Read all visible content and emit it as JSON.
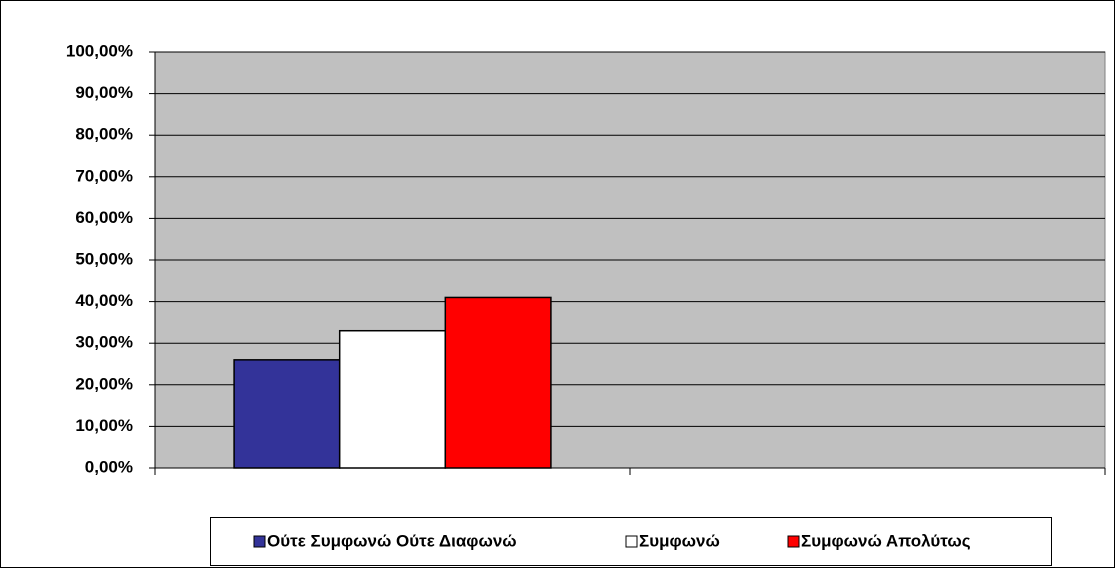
{
  "chart_data": {
    "type": "bar",
    "categories": [
      null,
      null
    ],
    "series": [
      {
        "name": "Ούτε Συμφωνώ Ούτε Διαφωνώ",
        "color": "#333399",
        "values": [
          26,
          null
        ]
      },
      {
        "name": "Συμφωνώ",
        "color": "#ffffff",
        "values": [
          33,
          null
        ]
      },
      {
        "name": "Συμφωνώ Απολύτως",
        "color": "#ff0000",
        "values": [
          41,
          null
        ]
      }
    ],
    "ylim": [
      0,
      100
    ],
    "yticks": [
      {
        "value": 0,
        "label": "0,00%"
      },
      {
        "value": 10,
        "label": "10,00%"
      },
      {
        "value": 20,
        "label": "20,00%"
      },
      {
        "value": 30,
        "label": "30,00%"
      },
      {
        "value": 40,
        "label": "40,00%"
      },
      {
        "value": 50,
        "label": "50,00%"
      },
      {
        "value": 60,
        "label": "60,00%"
      },
      {
        "value": 70,
        "label": "70,00%"
      },
      {
        "value": 80,
        "label": "80,00%"
      },
      {
        "value": 90,
        "label": "90,00%"
      },
      {
        "value": 100,
        "label": "100,00%"
      }
    ],
    "grid": true,
    "plot_background": "#c0c0c0",
    "legend": "bottom"
  }
}
